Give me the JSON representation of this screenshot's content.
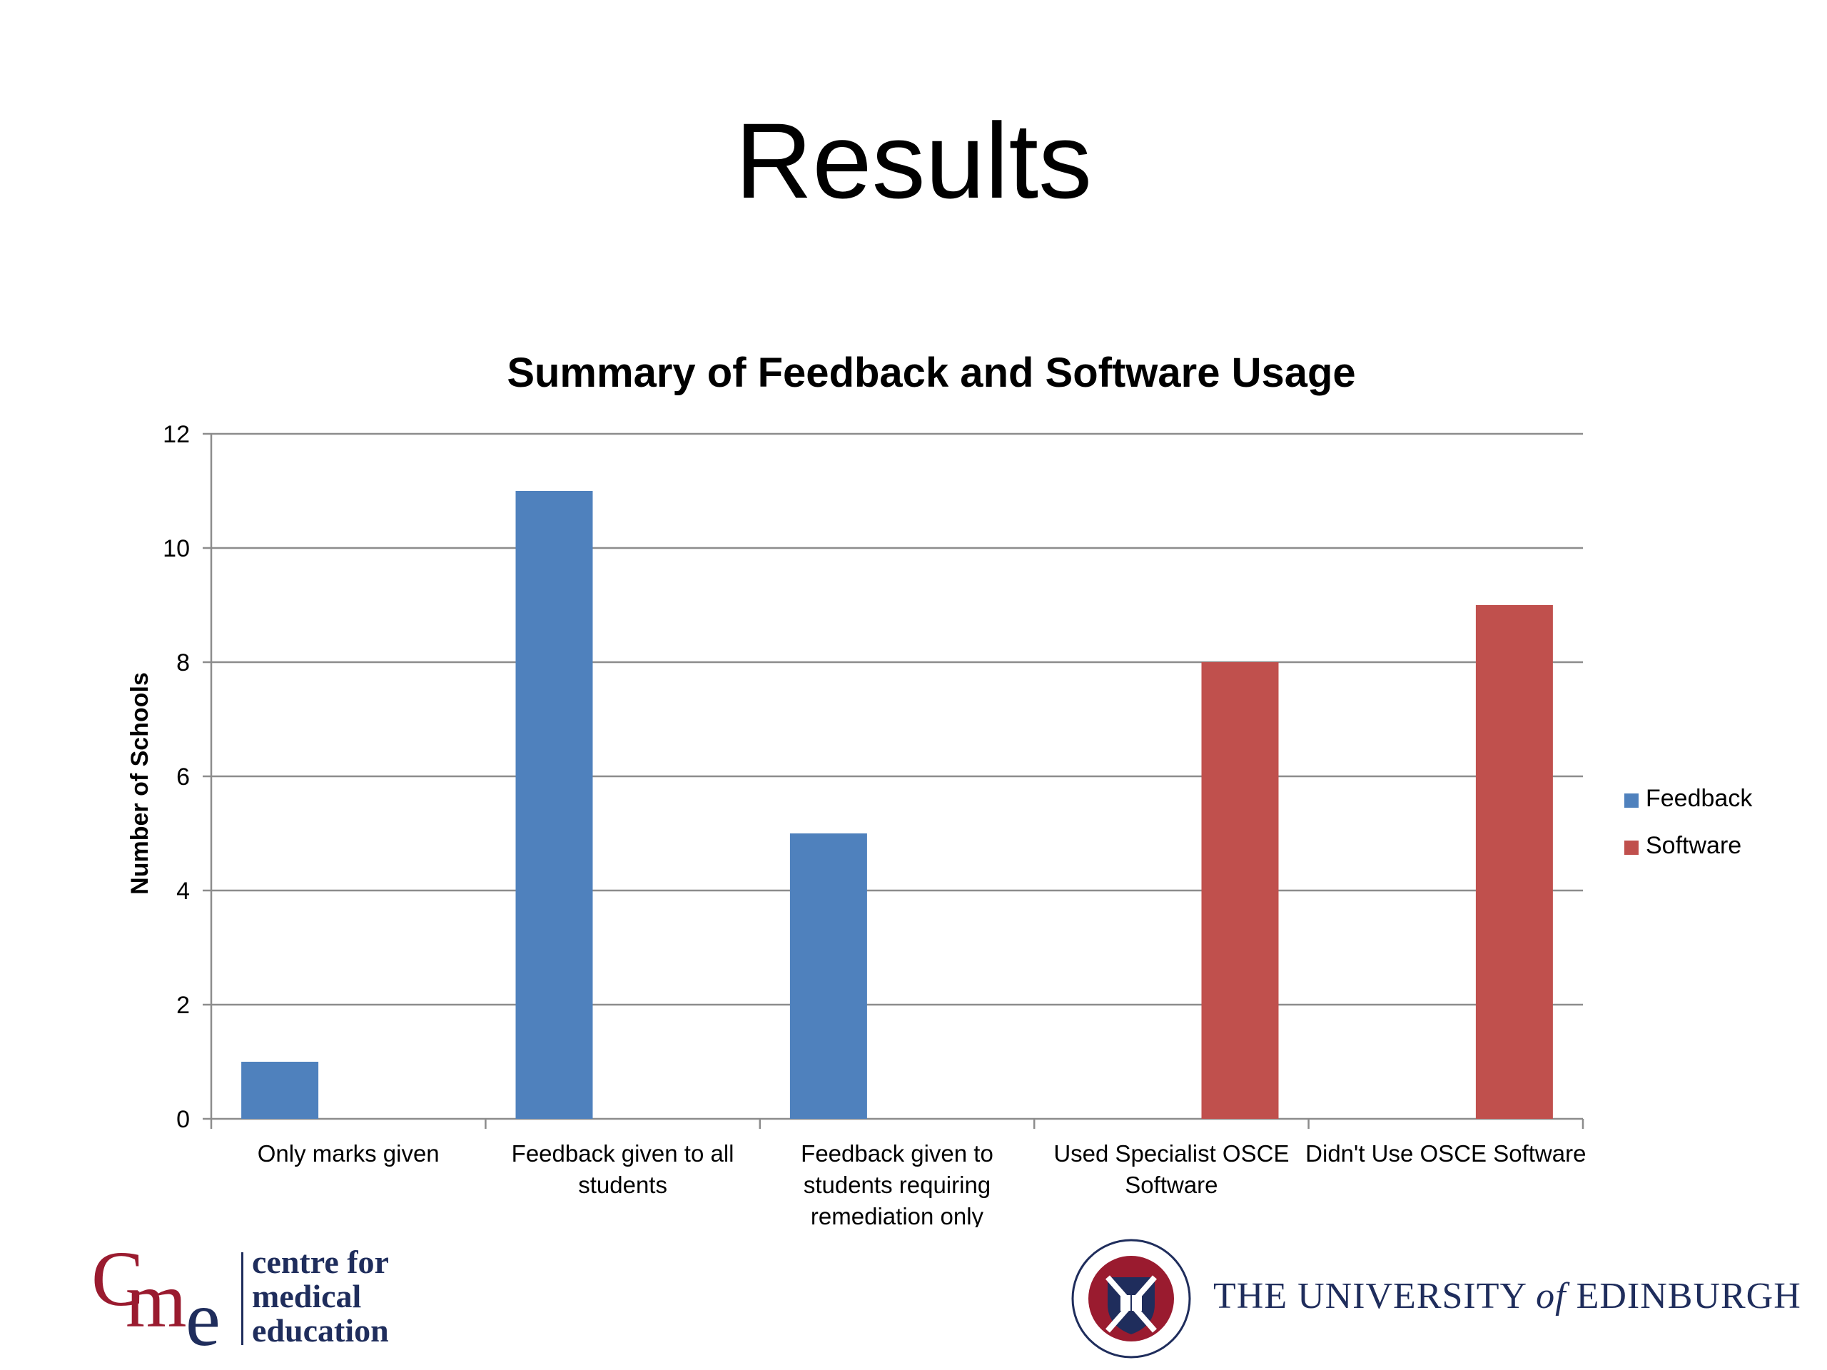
{
  "slide": {
    "title": "Results"
  },
  "chart_data": {
    "type": "bar",
    "title": "Summary of Feedback and Software Usage",
    "xlabel": "",
    "ylabel": "Number of Schools",
    "ylim": [
      0,
      12
    ],
    "yticks": [
      0,
      2,
      4,
      6,
      8,
      10,
      12
    ],
    "grid": true,
    "legend_position": "right",
    "categories": [
      [
        "Only marks given"
      ],
      [
        "Feedback given to all",
        "students"
      ],
      [
        "Feedback given to",
        "students requiring",
        "remediation only"
      ],
      [
        "Used Specialist OSCE",
        "Software"
      ],
      [
        "Didn't Use OSCE Software"
      ]
    ],
    "series": [
      {
        "name": "Feedback",
        "color": "#4f81bd",
        "values": [
          1,
          11,
          5,
          null,
          null
        ]
      },
      {
        "name": "Software",
        "color": "#c0504d",
        "values": [
          null,
          null,
          null,
          8,
          9
        ]
      }
    ]
  },
  "footer": {
    "cme": {
      "c": "C",
      "m": "m",
      "e": "e",
      "lines": [
        "centre for",
        "medical",
        "education"
      ]
    },
    "university": {
      "pre": "THE UNIVERSITY ",
      "of": "of",
      "post": " EDINBURGH"
    }
  }
}
